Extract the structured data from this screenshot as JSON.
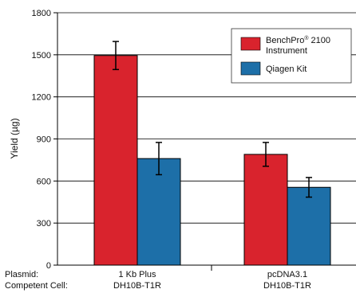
{
  "chart_data": {
    "type": "bar",
    "ylabel": "Yield (µg)",
    "ylim": [
      0,
      1800
    ],
    "yticks": [
      0,
      300,
      600,
      900,
      1200,
      1500,
      1800
    ],
    "grid": true,
    "legend_position": "top-right",
    "row_labels": [
      "Plasmid:",
      "Competent Cell:"
    ],
    "categories": [
      {
        "plasmid": "1 Kb Plus",
        "cell": "DH10B-T1R"
      },
      {
        "plasmid": "pcDNA3.1",
        "cell": "DH10B-T1R"
      }
    ],
    "series": [
      {
        "name_main": "BenchPro",
        "name_sup": "®",
        "name_rest": " 2100",
        "name_line2": "Instrument",
        "color": "#d9232d",
        "values": [
          1495,
          790
        ],
        "errors": [
          100,
          85
        ]
      },
      {
        "name_main": "Qiagen Kit",
        "name_sup": "",
        "name_rest": "",
        "name_line2": "",
        "color": "#1d6fa8",
        "values": [
          760,
          555
        ],
        "errors": [
          115,
          70
        ]
      }
    ]
  }
}
